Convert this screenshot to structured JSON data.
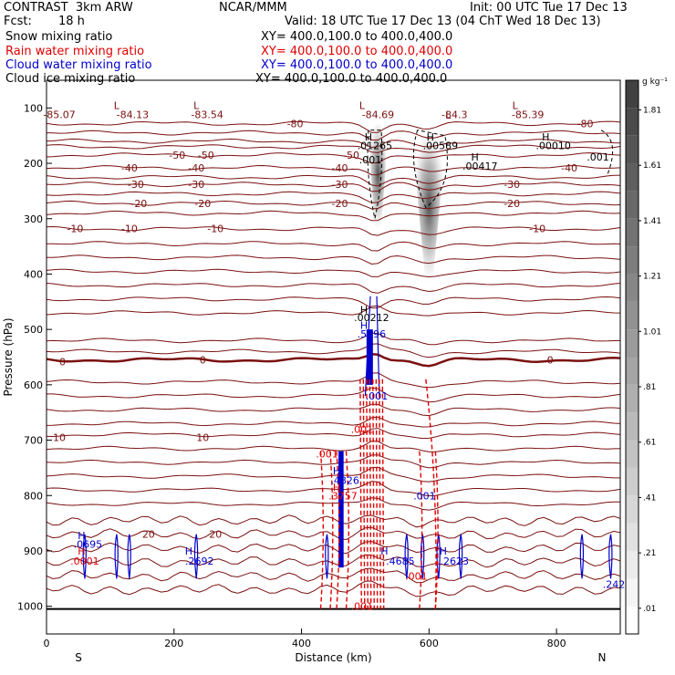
{
  "header": {
    "title_left": "CONTRAST  3km ARW",
    "title_center": "NCAR/MMM",
    "init": "Init: 00 UTC Tue 17 Dec 13",
    "fcst_label": "Fcst:",
    "fcst_value": "18 h",
    "valid": "Valid: 18 UTC Tue 17 Dec 13 (04 ChT Wed 18 Dec 13)",
    "fields": [
      {
        "name": "Snow mixing ratio",
        "xy": "XY= 400.0,100.0 to 400.0,400.0",
        "color": "#000000"
      },
      {
        "name": "Rain water mixing ratio",
        "xy": "XY= 400.0,100.0 to 400.0,400.0",
        "color": "#e00000"
      },
      {
        "name": "Cloud water mixing ratio",
        "xy": "XY= 400.0,100.0 to 400.0,400.0",
        "color": "#0000cc"
      },
      {
        "name": "Cloud ice mixing ratio",
        "xy": "XY= 400.0,100.0 to 400.0,400.0",
        "color": "#000000"
      }
    ]
  },
  "chart_data": {
    "type": "heatmap",
    "xlabel": "Distance (km)",
    "ylabel": "Pressure (hPa)",
    "xlim": [
      0,
      900
    ],
    "ylim": [
      1050,
      50
    ],
    "xticks": [
      0,
      200,
      400,
      600,
      800
    ],
    "yticks": [
      100,
      200,
      300,
      400,
      500,
      600,
      700,
      800,
      900,
      1000
    ],
    "end_labels": {
      "left": "S",
      "right": "N"
    },
    "colorbar": {
      "unit": "g kg⁻¹",
      "labels": [
        ".01",
        ".21",
        ".41",
        ".61",
        ".81",
        "1.01",
        "1.21",
        "1.41",
        "1.61",
        "1.81"
      ]
    },
    "temperature_contours": {
      "color": "#7a1010",
      "lines": [
        {
          "value": -80,
          "p": 128
        },
        {
          "value": -50,
          "p": 185
        },
        {
          "value": -40,
          "p": 208
        },
        {
          "value": -30,
          "p": 238
        },
        {
          "value": -20,
          "p": 272
        },
        {
          "value": -10,
          "p": 318
        },
        {
          "value": 0,
          "p": 555
        },
        {
          "value": 10,
          "p": 690
        },
        {
          "value": 20,
          "p": 870
        }
      ],
      "labels": [
        {
          "t": "-85.07",
          "x": 20,
          "p": 112
        },
        {
          "t": "-84.13",
          "x": 135,
          "p": 112
        },
        {
          "t": "-83.54",
          "x": 252,
          "p": 112
        },
        {
          "t": "-80",
          "x": 390,
          "p": 128
        },
        {
          "t": "-84.69",
          "x": 520,
          "p": 112
        },
        {
          "t": "-84.3",
          "x": 640,
          "p": 112
        },
        {
          "t": "-85.39",
          "x": 755,
          "p": 112
        },
        {
          "t": "-80",
          "x": 845,
          "p": 128
        },
        {
          "t": "-50",
          "x": 205,
          "p": 185
        },
        {
          "t": "-50",
          "x": 250,
          "p": 185
        },
        {
          "t": "-50",
          "x": 478,
          "p": 185
        },
        {
          "t": "-40",
          "x": 130,
          "p": 208
        },
        {
          "t": "-40",
          "x": 235,
          "p": 208
        },
        {
          "t": "-40",
          "x": 460,
          "p": 208
        },
        {
          "t": "-40",
          "x": 820,
          "p": 208
        },
        {
          "t": "-30",
          "x": 140,
          "p": 238
        },
        {
          "t": "-30",
          "x": 235,
          "p": 238
        },
        {
          "t": "-30",
          "x": 460,
          "p": 238
        },
        {
          "t": "-30",
          "x": 730,
          "p": 238
        },
        {
          "t": "-20",
          "x": 145,
          "p": 272
        },
        {
          "t": "-20",
          "x": 245,
          "p": 272
        },
        {
          "t": "-20",
          "x": 460,
          "p": 272
        },
        {
          "t": "-20",
          "x": 730,
          "p": 272
        },
        {
          "t": "-10",
          "x": 45,
          "p": 318
        },
        {
          "t": "-10",
          "x": 130,
          "p": 318
        },
        {
          "t": "-10",
          "x": 265,
          "p": 318
        },
        {
          "t": "-10",
          "x": 770,
          "p": 318
        },
        {
          "t": "0",
          "x": 25,
          "p": 558
        },
        {
          "t": "0",
          "x": 245,
          "p": 555
        },
        {
          "t": "0",
          "x": 790,
          "p": 555
        },
        {
          "t": "10",
          "x": 20,
          "p": 695
        },
        {
          "t": "10",
          "x": 245,
          "p": 695
        },
        {
          "t": "20",
          "x": 160,
          "p": 870
        },
        {
          "t": "20",
          "x": 265,
          "p": 870
        }
      ]
    },
    "snow_shading": [
      {
        "x": 520,
        "p_top": 130,
        "p_bot": 330,
        "peak": 1.01
      },
      {
        "x": 600,
        "p_top": 150,
        "p_bot": 430,
        "peak": 0.81
      }
    ],
    "annotations": [
      {
        "t": "L",
        "x": 110,
        "p": 95,
        "color": "#7a1010"
      },
      {
        "t": "L",
        "x": 235,
        "p": 95,
        "color": "#7a1010"
      },
      {
        "t": "L",
        "x": 495,
        "p": 95,
        "color": "#7a1010"
      },
      {
        "t": "L",
        "x": 630,
        "p": 113,
        "color": "#7a1010"
      },
      {
        "t": "L",
        "x": 735,
        "p": 95,
        "color": "#7a1010"
      },
      {
        "t": "H",
        "x": 505,
        "p": 152,
        "color": "#000000"
      },
      {
        "t": ".01265",
        "x": 515,
        "p": 168,
        "color": "#000000"
      },
      {
        "t": "H",
        "x": 602,
        "p": 152,
        "color": "#000000"
      },
      {
        "t": ".00589",
        "x": 618,
        "p": 168,
        "color": "#000000"
      },
      {
        "t": "H",
        "x": 783,
        "p": 152,
        "color": "#000000"
      },
      {
        "t": ".00010",
        "x": 795,
        "p": 168,
        "color": "#000000"
      },
      {
        "t": "H",
        "x": 672,
        "p": 188,
        "color": "#000000"
      },
      {
        "t": ".00417",
        "x": 680,
        "p": 205,
        "color": "#000000"
      },
      {
        "t": ".001",
        "x": 508,
        "p": 193,
        "color": "#000000"
      },
      {
        "t": ".001",
        "x": 865,
        "p": 188,
        "color": "#000000"
      },
      {
        "t": "H",
        "x": 498,
        "p": 464,
        "color": "#000000"
      },
      {
        "t": ".00212",
        "x": 510,
        "p": 478,
        "color": "#000000"
      },
      {
        "t": "H",
        "x": 498,
        "p": 492,
        "color": "#0000cc"
      },
      {
        "t": ".5496",
        "x": 510,
        "p": 508,
        "color": "#0000cc"
      },
      {
        "t": ".001",
        "x": 518,
        "p": 620,
        "color": "#0000cc"
      },
      {
        "t": ".001",
        "x": 495,
        "p": 680,
        "color": "#e00000"
      },
      {
        "t": ".001",
        "x": 440,
        "p": 725,
        "color": "#e00000"
      },
      {
        "t": "H",
        "x": 455,
        "p": 755,
        "color": "#0000cc"
      },
      {
        "t": ".4826",
        "x": 468,
        "p": 772,
        "color": "#0000cc"
      },
      {
        "t": "H",
        "x": 455,
        "p": 785,
        "color": "#e00000"
      },
      {
        "t": ".3757",
        "x": 465,
        "p": 800,
        "color": "#e00000"
      },
      {
        "t": ".001",
        "x": 593,
        "p": 800,
        "color": "#0000cc"
      },
      {
        "t": "H",
        "x": 55,
        "p": 872,
        "color": "#0000cc"
      },
      {
        "t": ".0695",
        "x": 65,
        "p": 888,
        "color": "#0000cc"
      },
      {
        "t": "H",
        "x": 55,
        "p": 900,
        "color": "#e00000"
      },
      {
        "t": ".0001",
        "x": 60,
        "p": 918,
        "color": "#e00000"
      },
      {
        "t": "H",
        "x": 223,
        "p": 900,
        "color": "#0000cc"
      },
      {
        "t": ".2692",
        "x": 240,
        "p": 918,
        "color": "#0000cc"
      },
      {
        "t": "H",
        "x": 530,
        "p": 900,
        "color": "#0000cc"
      },
      {
        "t": ".4685",
        "x": 555,
        "p": 918,
        "color": "#0000cc"
      },
      {
        "t": ".001",
        "x": 580,
        "p": 945,
        "color": "#e00000"
      },
      {
        "t": "H",
        "x": 622,
        "p": 900,
        "color": "#0000cc"
      },
      {
        "t": ".2623",
        "x": 640,
        "p": 918,
        "color": "#0000cc"
      },
      {
        "t": ".001",
        "x": 495,
        "p": 1000,
        "color": "#e00000"
      },
      {
        "t": ".242",
        "x": 890,
        "p": 960,
        "color": "#0000cc"
      }
    ]
  }
}
